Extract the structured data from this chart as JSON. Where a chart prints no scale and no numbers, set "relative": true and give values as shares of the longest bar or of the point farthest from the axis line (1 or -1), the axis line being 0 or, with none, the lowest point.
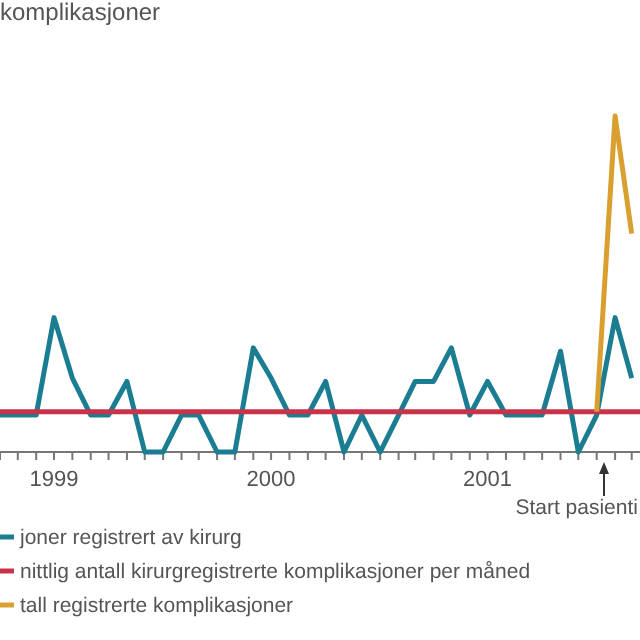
{
  "chart_data": {
    "type": "line",
    "title": "komplikasjoner",
    "relative": true,
    "xlim": [
      "1999-04-01",
      "2002-03-15"
    ],
    "xticks": [
      {
        "value": "1999-04",
        "label": null
      },
      {
        "value": "1999-05",
        "label": null
      },
      {
        "value": "1999-06",
        "label": null
      },
      {
        "value": "1999-07",
        "label": "1999"
      },
      {
        "value": "1999-08",
        "label": null
      },
      {
        "value": "1999-09",
        "label": null
      },
      {
        "value": "1999-10",
        "label": null
      },
      {
        "value": "1999-11",
        "label": null
      },
      {
        "value": "1999-12",
        "label": null
      },
      {
        "value": "2000-01",
        "label": null
      },
      {
        "value": "2000-02",
        "label": null
      },
      {
        "value": "2000-03",
        "label": null
      },
      {
        "value": "2000-04",
        "label": null
      },
      {
        "value": "2000-05",
        "label": null
      },
      {
        "value": "2000-06",
        "label": null
      },
      {
        "value": "2000-07",
        "label": "2000"
      },
      {
        "value": "2000-08",
        "label": null
      },
      {
        "value": "2000-09",
        "label": null
      },
      {
        "value": "2000-10",
        "label": null
      },
      {
        "value": "2000-11",
        "label": null
      },
      {
        "value": "2000-12",
        "label": null
      },
      {
        "value": "2001-01",
        "label": null
      },
      {
        "value": "2001-02",
        "label": null
      },
      {
        "value": "2001-03",
        "label": null
      },
      {
        "value": "2001-04",
        "label": null
      },
      {
        "value": "2001-05",
        "label": null
      },
      {
        "value": "2001-06",
        "label": null
      },
      {
        "value": "2001-07",
        "label": "2001"
      },
      {
        "value": "2001-08",
        "label": null
      },
      {
        "value": "2001-09",
        "label": null
      },
      {
        "value": "2001-10",
        "label": null
      },
      {
        "value": "2001-11",
        "label": null
      },
      {
        "value": "2001-12",
        "label": null
      },
      {
        "value": "2002-01",
        "label": null
      },
      {
        "value": "2002-02",
        "label": null
      },
      {
        "value": "2002-03",
        "label": null
      }
    ],
    "series": [
      {
        "name": "joner registrert av kirurg",
        "color": "#1a7d92",
        "x": [
          "1999-04",
          "1999-05",
          "1999-06",
          "1999-07",
          "1999-08",
          "1999-09",
          "1999-10",
          "1999-11",
          "1999-12",
          "2000-01",
          "2000-02",
          "2000-03",
          "2000-04",
          "2000-05",
          "2000-06",
          "2000-07",
          "2000-08",
          "2000-09",
          "2000-10",
          "2000-11",
          "2000-12",
          "2001-01",
          "2001-02",
          "2001-03",
          "2001-04",
          "2001-05",
          "2001-06",
          "2001-07",
          "2001-08",
          "2001-09",
          "2001-10",
          "2001-11",
          "2001-12",
          "2002-01",
          "2002-02",
          "2002-03"
        ],
        "values": [
          0.11,
          0.11,
          0.11,
          0.4,
          0.22,
          0.11,
          0.11,
          0.21,
          0,
          0,
          0.11,
          0.11,
          0,
          0,
          0.31,
          0.22,
          0.11,
          0.11,
          0.21,
          0,
          0.11,
          0,
          0.11,
          0.21,
          0.21,
          0.31,
          0.11,
          0.21,
          0.11,
          0.11,
          0.11,
          0.3,
          0,
          0.11,
          0.4,
          0.22
        ]
      },
      {
        "name": "nittlig antall kirurgregistrerte komplikasjoner per måned",
        "color": "#c8334a",
        "x": [
          "1999-04-01",
          "2002-03-15"
        ],
        "values": [
          0.12,
          0.12
        ]
      },
      {
        "name": "tall registrerte komplikasjoner",
        "color": "#d9a030",
        "x": [
          "2002-01",
          "2002-02",
          "2002-03"
        ],
        "values": [
          0.12,
          1,
          0.65
        ]
      }
    ],
    "annotations": [
      "Start pasienti"
    ],
    "legend": "bottom left",
    "line_style": "solid",
    "marker": "none",
    "grid": false
  }
}
